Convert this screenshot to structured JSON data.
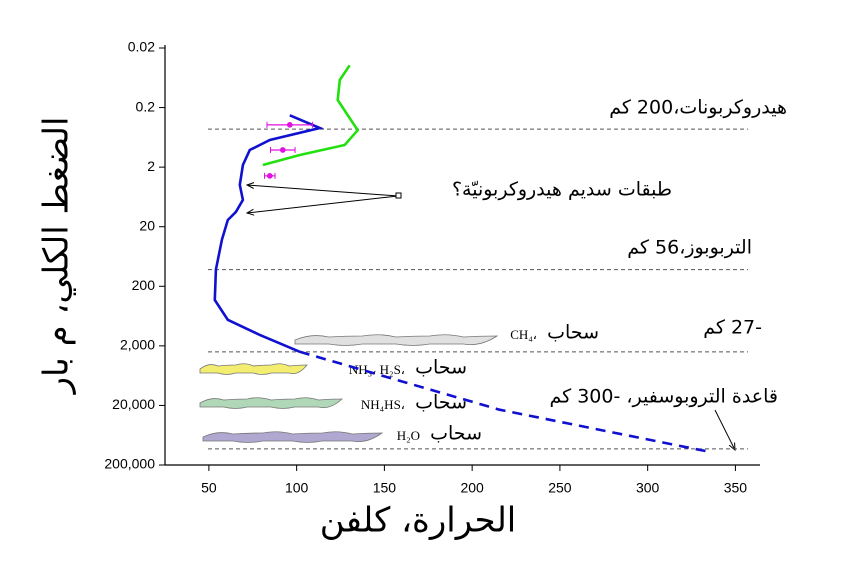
{
  "chart_data": {
    "type": "line",
    "xlabel": "الحرارة، كلفن",
    "ylabel": "الضغط الكلي، م بار",
    "xlim": [
      25,
      364
    ],
    "ylim": [
      200000,
      0.02
    ],
    "ylog": true,
    "xticks": [
      50,
      100,
      150,
      200,
      250,
      300,
      350
    ],
    "yticks": [
      0.02,
      0.2,
      2,
      20,
      200,
      {
        "value": 2000,
        "label": "2,000"
      },
      {
        "value": 20000,
        "label": "20,000"
      },
      {
        "value": 200000,
        "label": "200,000"
      }
    ],
    "series": [
      {
        "color": "#1010d0",
        "x": [
          96.1,
          113.2,
          84.7,
          73.3,
          69.4,
          67.6,
          69.4,
          65.4,
          60.8,
          57.4,
          54.0,
          53.4,
          60.8,
          79.0,
          101.8
        ],
        "values": [
          0.27,
          0.44,
          0.7,
          1.03,
          1.84,
          3.98,
          7.1,
          11.3,
          15.4,
          33.2,
          105,
          340,
          730,
          1310,
          2520
        ],
        "dash": false
      },
      {
        "color": "#1010d0",
        "x": [
          101.8,
          215.6,
          335.1
        ],
        "values": [
          2520,
          23600,
          120000
        ],
        "dash": true
      },
      {
        "color": "#22e010",
        "x": [
          130.2,
          124.6,
          123.4,
          134.8,
          127.4,
          101.8,
          80.7
        ],
        "values": [
          0.039,
          0.069,
          0.149,
          0.48,
          0.85,
          1.25,
          1.84
        ],
        "dash": false
      }
    ],
    "points": {
      "color": "#e010e0",
      "x": [
        96.1,
        92.1,
        84.7
      ],
      "values": [
        0.39,
        1.03,
        2.8
      ],
      "xerr": [
        13,
        7,
        3
      ]
    },
    "levels": [
      {
        "label": "هيدروكربونات،200 كم",
        "value": 0.46
      },
      {
        "label": "التربوبوز،56 كم",
        "value": 105
      },
      {
        "label": "-27 كم",
        "value": 2520
      },
      {
        "label": "قاعدة التروبوسفير، -300 كم",
        "value": 107000
      }
    ],
    "nebula_note": "طبقات سديم هيدروكربونيّة؟",
    "clouds": [
      {
        "label": "سحاب",
        "species": "CH₄،",
        "color": "#e0e0e0"
      },
      {
        "label": "سحاب",
        "species": "NH₃، H₂S،",
        "color": "#f4ee70"
      },
      {
        "label": "سحاب",
        "species": "NH₄HS،",
        "color": "#b0d8b8"
      },
      {
        "label": "سحاب",
        "species": "H₂O",
        "color": "#b0a8d0"
      }
    ]
  }
}
